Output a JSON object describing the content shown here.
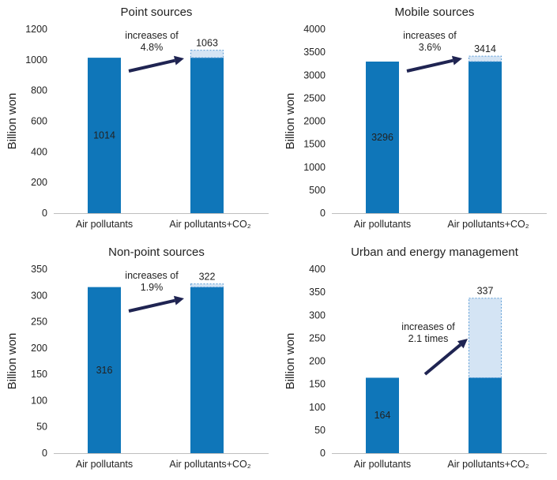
{
  "chart_data": [
    {
      "type": "bar",
      "title": "Point sources",
      "ylabel": "Billion won",
      "xlabel": "",
      "ylim": [
        0,
        1200
      ],
      "yticks": [
        "0",
        "200",
        "400",
        "600",
        "800",
        "1000",
        "1200"
      ],
      "categories": [
        "Air pollutants",
        "Air pollutants+CO₂"
      ],
      "base_values": [
        1014,
        1014
      ],
      "total_values": [
        1014,
        1063
      ],
      "base_label": "1014",
      "total_label": "1063",
      "annotation_line1": "increases of",
      "annotation_line2": "4.8%",
      "annotation_position": "upper-middle"
    },
    {
      "type": "bar",
      "title": "Mobile sources",
      "ylabel": "Billion won",
      "xlabel": "",
      "ylim": [
        0,
        4000
      ],
      "yticks": [
        "0",
        "500",
        "1000",
        "1500",
        "2000",
        "2500",
        "3000",
        "3500",
        "4000"
      ],
      "categories": [
        "Air pollutants",
        "Air pollutants+CO₂"
      ],
      "base_values": [
        3296,
        3296
      ],
      "total_values": [
        3296,
        3414
      ],
      "base_label": "3296",
      "total_label": "3414",
      "annotation_line1": "increases of",
      "annotation_line2": "3.6%",
      "annotation_position": "upper-middle"
    },
    {
      "type": "bar",
      "title": "Non-point sources",
      "ylabel": "Billion won",
      "xlabel": "",
      "ylim": [
        0,
        350
      ],
      "yticks": [
        "0",
        "50",
        "100",
        "150",
        "200",
        "250",
        "300",
        "350"
      ],
      "categories": [
        "Air pollutants",
        "Air pollutants+CO₂"
      ],
      "base_values": [
        316,
        316
      ],
      "total_values": [
        316,
        322
      ],
      "base_label": "316",
      "total_label": "322",
      "annotation_line1": "increases of",
      "annotation_line2": "1.9%",
      "annotation_position": "upper-middle"
    },
    {
      "type": "bar",
      "title": "Urban and energy management",
      "ylabel": "Billion won",
      "xlabel": "",
      "ylim": [
        0,
        400
      ],
      "yticks": [
        "0",
        "50",
        "100",
        "150",
        "200",
        "250",
        "300",
        "350",
        "400"
      ],
      "categories": [
        "Air pollutants",
        "Air pollutants+CO₂"
      ],
      "base_values": [
        164,
        164
      ],
      "total_values": [
        164,
        337
      ],
      "base_label": "164",
      "total_label": "337",
      "annotation_line1": "increases of",
      "annotation_line2": "2.1 times",
      "annotation_position": "middle"
    }
  ],
  "colors": {
    "bar": "#0f76b9",
    "increment_fill": "#d4e4f4",
    "increment_border": "#5b9bd5",
    "arrow": "#1f2452",
    "axis": "#bfbfbf"
  }
}
